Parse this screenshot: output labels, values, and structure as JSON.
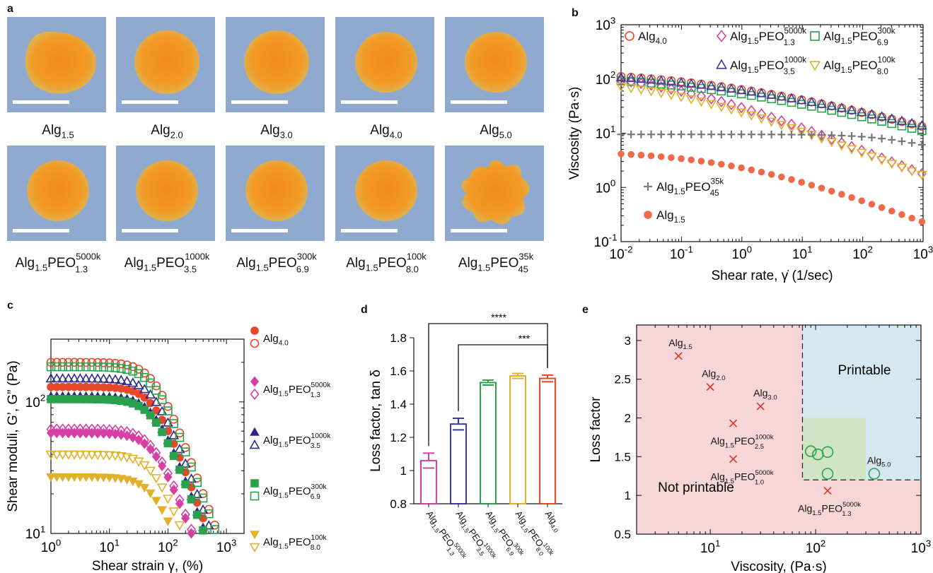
{
  "panel_letters": {
    "a": "a",
    "b": "b",
    "c": "c",
    "d": "d",
    "e": "e"
  },
  "panel_a": {
    "top_row": [
      {
        "base": "Alg",
        "sub": "1.5",
        "sup": ""
      },
      {
        "base": "Alg",
        "sub": "2.0",
        "sup": ""
      },
      {
        "base": "Alg",
        "sub": "3.0",
        "sup": ""
      },
      {
        "base": "Alg",
        "sub": "4.0",
        "sup": ""
      },
      {
        "base": "Alg",
        "sub": "5.0",
        "sup": ""
      }
    ],
    "bottom_row": [
      {
        "base": "Alg",
        "sub": "1.5",
        "mid": "PEO",
        "sup": "5000k",
        "sub2": "1.3"
      },
      {
        "base": "Alg",
        "sub": "1.5",
        "mid": "PEO",
        "sup": "1000k",
        "sub2": "3.5"
      },
      {
        "base": "Alg",
        "sub": "1.5",
        "mid": "PEO",
        "sup": "300k",
        "sub2": "6.9"
      },
      {
        "base": "Alg",
        "sub": "1.5",
        "mid": "PEO",
        "sup": "100k",
        "sub2": "8.0"
      },
      {
        "base": "Alg",
        "sub": "1.5",
        "mid": "PEO",
        "sup": "35k",
        "sub2": "45"
      }
    ],
    "colors": {
      "background": "#8fa9cf",
      "blob_core": "#f28a1a",
      "blob_edge": "#e6b845"
    }
  },
  "chart_data": [
    {
      "panel": "b",
      "type": "scatter",
      "xlabel": "Shear rate, γ̇ (1/sec)",
      "ylabel": "Viscosity (Pa·s)",
      "xscale": "log",
      "yscale": "log",
      "xlim": [
        0.01,
        1000
      ],
      "ylim": [
        0.1,
        1000
      ],
      "xticks": [
        "10-2",
        "10-1",
        "100",
        "101",
        "102",
        "103"
      ],
      "yticks": [
        "10-1",
        "100",
        "101",
        "102",
        "103"
      ],
      "legend_position": "top",
      "series": [
        {
          "name": "Alg4.0",
          "marker": "circle-open",
          "color": "#e8472a",
          "eta0": 150,
          "tau": 0.35,
          "n": 0.28
        },
        {
          "name": "Alg1.5PEO5000k1.3",
          "marker": "diamond-open",
          "color": "#d63fa4",
          "eta0": 140,
          "tau": 0.05,
          "n": 0.42
        },
        {
          "name": "Alg1.5PEO300k6.9",
          "marker": "square-open",
          "color": "#2aa24c",
          "eta0": 125,
          "tau": 0.35,
          "n": 0.28
        },
        {
          "name": "Alg1.5PEO1000k3.5",
          "marker": "triangle-open",
          "color": "#3a3a9c",
          "eta0": 145,
          "tau": 0.33,
          "n": 0.27
        },
        {
          "name": "Alg1.5PEO100k8.0",
          "marker": "triangle-down-open",
          "color": "#e2b12a",
          "eta0": 110,
          "tau": 0.05,
          "n": 0.4
        },
        {
          "name": "Alg1.5PEO35k45",
          "marker": "plus",
          "color": "#777777",
          "eta0": 9.5,
          "tau": 5,
          "n": 0.65
        },
        {
          "name": "Alg1.5",
          "marker": "circle-filled",
          "color": "#ee6a4a",
          "eta0": 4.8,
          "tau": 0.8,
          "n": 0.4
        }
      ]
    },
    {
      "panel": "c",
      "type": "scatter",
      "xlabel": "Shear strain γ, (%)",
      "ylabel": "Shear moduli, G’, G” (Pa)",
      "xscale": "log",
      "yscale": "log",
      "xlim": [
        1,
        2000
      ],
      "ylim": [
        10,
        300
      ],
      "xticks": [
        "100",
        "101",
        "102",
        "103"
      ],
      "yticks": [
        "101",
        "102"
      ],
      "legend_position": "right",
      "series": [
        {
          "name": "Alg4.0",
          "color": "#e8472a",
          "shape": "circle",
          "Gp": 130,
          "Gpp": 200,
          "cut_p": 700,
          "cut_pp": 2000
        },
        {
          "name": "Alg1.5PEO5000k1.3",
          "color": "#d63fa4",
          "shape": "diamond",
          "Gp": 58,
          "Gpp": 62,
          "cut_p": 400,
          "cut_pp": 1500
        },
        {
          "name": "Alg1.5PEO1000k3.5",
          "color": "#2b2b88",
          "shape": "triangle",
          "Gp": 110,
          "Gpp": 150,
          "cut_p": 650,
          "cut_pp": 2000
        },
        {
          "name": "Alg1.5PEO300k6.9",
          "color": "#2aa24c",
          "shape": "square",
          "Gp": 105,
          "Gpp": 185,
          "cut_p": 650,
          "cut_pp": 2000
        },
        {
          "name": "Alg1.5PEO100k8.0",
          "color": "#e2b12a",
          "shape": "triangle-down",
          "Gp": 27,
          "Gpp": 40,
          "cut_p": 350,
          "cut_pp": 2000
        }
      ]
    },
    {
      "panel": "d",
      "type": "bar",
      "ylabel": "Loss factor, tan δ",
      "ylim": [
        0.8,
        1.8
      ],
      "yticks": [
        "0.8",
        "1",
        "1.2",
        "1.4",
        "1.6",
        "1.8"
      ],
      "categories": [
        "Alg1.5PEO5000k1.3",
        "Alg1.5PEO1000k3.5",
        "Alg1.5PEO300k6.9",
        "Alg1.5PEO100k8.0",
        "Alg4.0"
      ],
      "values": [
        1.06,
        1.28,
        1.53,
        1.57,
        1.555
      ],
      "errors": [
        0.045,
        0.035,
        0.015,
        0.015,
        0.02
      ],
      "colors": [
        "#d63fa4",
        "#3a3a9c",
        "#2aa24c",
        "#e2b12a",
        "#e8472a"
      ],
      "significance": [
        {
          "from": 0,
          "to": 4,
          "label": "****"
        },
        {
          "from": 1,
          "to": 4,
          "label": "***"
        }
      ]
    },
    {
      "panel": "e",
      "type": "scatter",
      "xlabel": "Viscosity, (Pa·s)",
      "ylabel": "Loss factor",
      "xscale": "log",
      "xlim": [
        2,
        1000
      ],
      "ylim": [
        0.5,
        3.2
      ],
      "xticks": [
        "101",
        "102",
        "103"
      ],
      "yticks": [
        "0.5",
        "1",
        "1.5",
        "2",
        "2.5",
        "3"
      ],
      "regions": {
        "printable": "Printable",
        "not_printable": "Not printable",
        "threshold_x": 75,
        "threshold_y": 1.2
      },
      "not_printable_points": [
        {
          "label": "Alg1.5",
          "x": 5,
          "y": 2.8
        },
        {
          "label": "Alg2.0",
          "x": 10,
          "y": 2.4
        },
        {
          "label": "Alg3.0",
          "x": 30,
          "y": 2.15
        },
        {
          "label": "Alg1.5PEO1000k2.5",
          "x": 16.5,
          "y": 1.93
        },
        {
          "label": "Alg1.5PEO5000k1.0",
          "x": 16.5,
          "y": 1.47
        },
        {
          "label": "Alg1.5PEO5000k1.3",
          "x": 130,
          "y": 1.06
        }
      ],
      "printable_points": [
        {
          "x": 90,
          "y": 1.57
        },
        {
          "x": 105,
          "y": 1.53
        },
        {
          "x": 130,
          "y": 1.56
        },
        {
          "x": 130,
          "y": 1.28
        },
        {
          "x": 360,
          "y": 1.28,
          "label": "Alg5.0"
        }
      ]
    }
  ]
}
